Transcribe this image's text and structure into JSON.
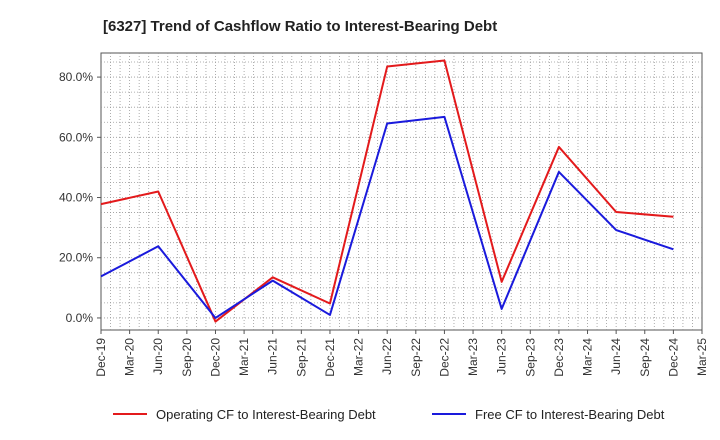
{
  "chart_data": {
    "type": "line",
    "title": "[6327]  Trend of Cashflow Ratio to Interest-Bearing Debt",
    "xlabel": "",
    "ylabel": "",
    "x": [
      "Dec-19",
      "Mar-20",
      "Jun-20",
      "Sep-20",
      "Dec-20",
      "Mar-21",
      "Jun-21",
      "Sep-21",
      "Dec-21",
      "Mar-22",
      "Jun-22",
      "Sep-22",
      "Dec-22",
      "Mar-23",
      "Jun-23",
      "Sep-23",
      "Dec-23",
      "Mar-24",
      "Jun-24",
      "Sep-24",
      "Dec-24",
      "Mar-25"
    ],
    "x_tick_labels": [
      "Dec-19",
      "Mar-20",
      "Jun-20",
      "Sep-20",
      "Dec-20",
      "Mar-21",
      "Jun-21",
      "Sep-21",
      "Dec-21",
      "Mar-22",
      "Jun-22",
      "Sep-22",
      "Dec-22",
      "Mar-23",
      "Jun-23",
      "Sep-23",
      "Dec-23",
      "Mar-24",
      "Jun-24",
      "Sep-24",
      "Dec-24",
      "Mar-25"
    ],
    "y_ticks": [
      0,
      20,
      40,
      60,
      80
    ],
    "y_tick_labels": [
      "0.0%",
      "20.0%",
      "40.0%",
      "60.0%",
      "80.0%"
    ],
    "ylim": [
      -4,
      88
    ],
    "grid": true,
    "legend_position": "bottom",
    "series": [
      {
        "name": "Operating CF to Interest-Bearing Debt",
        "color": "#e31a1c",
        "points": [
          [
            "Dec-19",
            37.8
          ],
          [
            "Jun-20",
            42
          ],
          [
            "Dec-20",
            -1.2
          ],
          [
            "Jun-21",
            13.5
          ],
          [
            "Dec-21",
            4.8
          ],
          [
            "Jun-22",
            83.5
          ],
          [
            "Dec-22",
            85.5
          ],
          [
            "Jun-23",
            12
          ],
          [
            "Dec-23",
            56.8
          ],
          [
            "Jun-24",
            35.2
          ],
          [
            "Dec-24",
            33.6
          ]
        ]
      },
      {
        "name": "Free CF to Interest-Bearing Debt",
        "color": "#1a1adc",
        "points": [
          [
            "Dec-19",
            13.8
          ],
          [
            "Jun-20",
            23.8
          ],
          [
            "Dec-20",
            0
          ],
          [
            "Jun-21",
            12.4
          ],
          [
            "Dec-21",
            1
          ],
          [
            "Jun-22",
            64.6
          ],
          [
            "Dec-22",
            66.8
          ],
          [
            "Jun-23",
            3
          ],
          [
            "Dec-23",
            48.5
          ],
          [
            "Jun-24",
            29.2
          ],
          [
            "Dec-24",
            22.8
          ]
        ]
      }
    ]
  }
}
